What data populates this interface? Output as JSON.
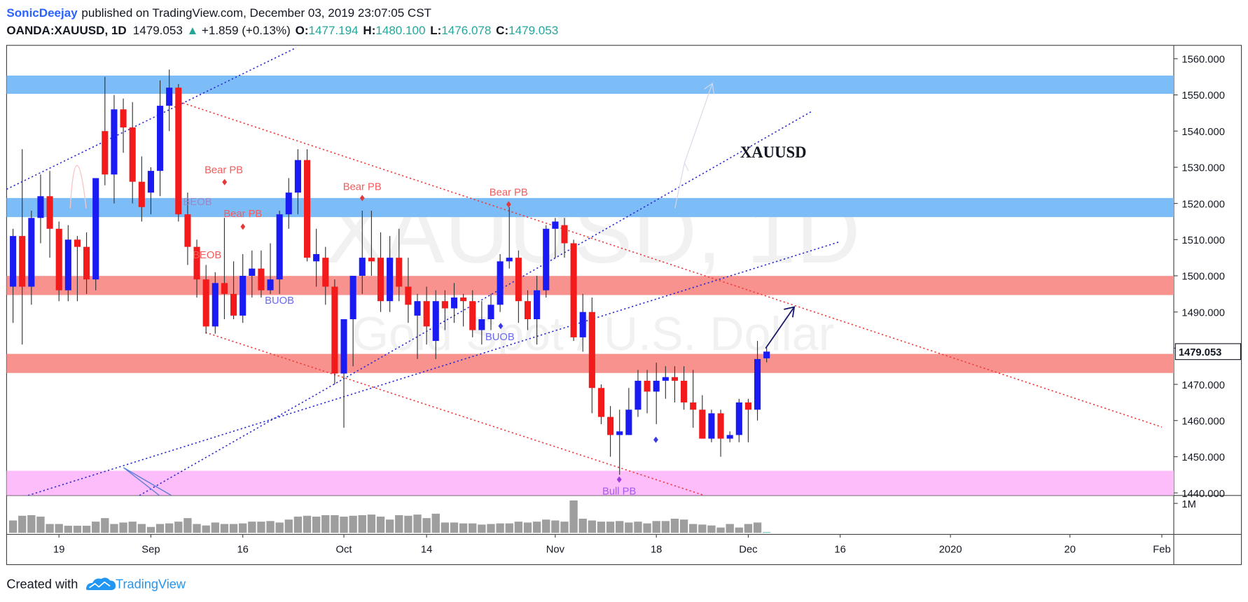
{
  "header": {
    "author": "SonicDeejay",
    "published": "published on TradingView.com, December 03, 2019 23:07:05 CST",
    "symbol": "OANDA:XAUUSD, 1D",
    "last": "1479.053",
    "change_arrow": "▲",
    "change": "+1.859 (+0.13%)",
    "ohlc": [
      {
        "label": "O:",
        "value": "1477.194"
      },
      {
        "label": "H:",
        "value": "1480.100"
      },
      {
        "label": "L:",
        "value": "1476.078"
      },
      {
        "label": "C:",
        "value": "1479.053"
      }
    ]
  },
  "chart_data": {
    "type": "candlestick",
    "watermark_title": "XAUUSD, 1D",
    "watermark_subtitle": "Gold Spot / U.S. Dollar",
    "annotations": [
      "Bear PB",
      "BEOB",
      "Bear PB",
      "BEOB",
      "BUOB",
      "Bear PB",
      "Bear PB",
      "BUOB",
      "Bull PB",
      "XAUUSD"
    ],
    "up_color": "#1a1af2",
    "down_color": "#f21a1a",
    "volume_color": "#9e9e9e",
    "grid": false,
    "open": [
      1497,
      1511,
      1497,
      1516,
      1522,
      1513,
      1496,
      1510,
      1508,
      1499,
      1540,
      1528,
      1546,
      1541,
      1526,
      1523,
      1529,
      1547,
      1552,
      1517,
      1508,
      1499,
      1486,
      1498,
      1495,
      1489,
      1500,
      1502,
      1496,
      1499,
      1517,
      1523,
      1532,
      1504,
      1505,
      1497,
      1473,
      1488,
      1500,
      1505,
      1505,
      1493,
      1505,
      1497,
      1489,
      1493,
      1482,
      1493,
      1491,
      1494,
      1493,
      1485,
      1488,
      1492,
      1504,
      1505,
      1493,
      1488,
      1496,
      1513,
      1514,
      1509,
      1483,
      1490,
      1469,
      1461,
      1456,
      1456,
      1463,
      1471,
      1468,
      1471,
      1472,
      1471,
      1465,
      1463,
      1455,
      1462,
      1455,
      1456,
      1465,
      1463,
      1477.194
    ],
    "high": [
      1513,
      1535,
      1518,
      1528,
      1529,
      1515,
      1514,
      1511,
      1512,
      1527,
      1555,
      1550,
      1549,
      1548,
      1533,
      1530,
      1554,
      1557,
      1553,
      1523,
      1510,
      1503,
      1501,
      1516,
      1504,
      1506,
      1507,
      1507,
      1509,
      1518,
      1527,
      1535,
      1535,
      1513,
      1508,
      1499,
      1488,
      1500,
      1518,
      1518,
      1512,
      1511,
      1513,
      1505,
      1495,
      1497,
      1496,
      1496,
      1498,
      1495,
      1496,
      1493,
      1495,
      1506,
      1519,
      1507,
      1496,
      1500,
      1514,
      1516,
      1516,
      1510,
      1495,
      1494,
      1470,
      1464,
      1463,
      1469,
      1474,
      1474,
      1476,
      1475,
      1475,
      1475,
      1474,
      1467,
      1463,
      1463,
      1457,
      1466,
      1466,
      1482,
      1480.1
    ],
    "low": [
      1487,
      1481,
      1492,
      1509,
      1505,
      1493,
      1493,
      1493,
      1495,
      1496,
      1525,
      1520,
      1534,
      1520,
      1515,
      1517,
      1522,
      1540,
      1515,
      1503,
      1494,
      1484,
      1484,
      1488,
      1488,
      1487,
      1494,
      1494,
      1495,
      1495,
      1513,
      1517,
      1504,
      1497,
      1492,
      1470,
      1458,
      1475,
      1495,
      1500,
      1490,
      1490,
      1493,
      1487,
      1477,
      1481,
      1477,
      1485,
      1487,
      1486,
      1483,
      1481,
      1485,
      1490,
      1502,
      1487,
      1485,
      1481,
      1494,
      1505,
      1505,
      1482,
      1479,
      1462,
      1459,
      1450,
      1445,
      1456,
      1461,
      1462,
      1459,
      1466,
      1465,
      1463,
      1458,
      1455,
      1454,
      1450,
      1454,
      1454,
      1454,
      1460,
      1476.078
    ],
    "close": [
      1511,
      1497,
      1516,
      1522,
      1513,
      1496,
      1510,
      1508,
      1499,
      1527,
      1528,
      1546,
      1541,
      1526,
      1519,
      1529,
      1547,
      1552,
      1517,
      1508,
      1499,
      1486,
      1498,
      1495,
      1489,
      1500,
      1502,
      1496,
      1499,
      1517,
      1523,
      1532,
      1505,
      1506,
      1497,
      1473,
      1488,
      1500,
      1505,
      1504,
      1493,
      1505,
      1497,
      1492,
      1493,
      1486,
      1493,
      1491,
      1494,
      1493,
      1485,
      1488,
      1492,
      1504,
      1505,
      1493,
      1488,
      1496,
      1513,
      1515,
      1509,
      1483,
      1490,
      1469,
      1461,
      1456,
      1457,
      1463,
      1471,
      1468,
      1471,
      1472,
      1471,
      1465,
      1463,
      1455,
      1462,
      1455,
      1456,
      1465,
      1463,
      1477,
      1479.053
    ],
    "volume": [
      420000,
      580000,
      600000,
      550000,
      300000,
      300000,
      240000,
      240000,
      240000,
      380000,
      500000,
      300000,
      350000,
      380000,
      300000,
      200000,
      300000,
      320000,
      380000,
      500000,
      300000,
      250000,
      350000,
      300000,
      300000,
      320000,
      380000,
      380000,
      400000,
      350000,
      450000,
      550000,
      580000,
      550000,
      600000,
      600000,
      550000,
      580000,
      600000,
      620000,
      550000,
      450000,
      600000,
      580000,
      620000,
      500000,
      650000,
      350000,
      350000,
      320000,
      320000,
      280000,
      300000,
      320000,
      320000,
      380000,
      350000,
      380000,
      450000,
      420000,
      380000,
      1100000,
      480000,
      420000,
      380000,
      380000,
      400000,
      350000,
      380000,
      320000,
      400000,
      400000,
      480000,
      450000,
      300000,
      280000,
      250000,
      180000,
      300000,
      180000,
      300000,
      350000,
      30000
    ],
    "xlim": [
      -0.7,
      126.3
    ],
    "xticks": [
      {
        "value": 5,
        "label": "19"
      },
      {
        "value": 15,
        "label": "Sep"
      },
      {
        "value": 25,
        "label": "16"
      },
      {
        "value": 36,
        "label": "Oct"
      },
      {
        "value": 45,
        "label": "14"
      },
      {
        "value": 59,
        "label": "Nov"
      },
      {
        "value": 70,
        "label": "18"
      },
      {
        "value": 80,
        "label": "Dec"
      },
      {
        "value": 90,
        "label": "16"
      },
      {
        "value": 102,
        "label": "2020"
      },
      {
        "value": 115,
        "label": "20"
      },
      {
        "value": 125,
        "label": "Feb"
      }
    ],
    "ylim": [
      1439.3,
      1563.7
    ],
    "yticks": [
      {
        "value": 1440,
        "label": "1440.000"
      },
      {
        "value": 1450,
        "label": "1450.000"
      },
      {
        "value": 1460,
        "label": "1460.000"
      },
      {
        "value": 1470,
        "label": "1470.000"
      },
      {
        "value": 1480,
        "label": "1480.000"
      },
      {
        "value": 1490,
        "label": "1490.000"
      },
      {
        "value": 1500,
        "label": "1500.000"
      },
      {
        "value": 1510,
        "label": "1510.000"
      },
      {
        "value": 1520,
        "label": "1520.000"
      },
      {
        "value": 1530,
        "label": "1530.000"
      },
      {
        "value": 1540,
        "label": "1540.000"
      },
      {
        "value": 1550,
        "label": "1550.000"
      },
      {
        "value": 1560,
        "label": "1560.000"
      }
    ],
    "volume_lim": [
      0,
      1216000
    ],
    "volume_ticks": [
      {
        "value": 1000000,
        "label": "1M"
      }
    ]
  },
  "footer": {
    "text": "Created with",
    "brand": "TradingView"
  }
}
